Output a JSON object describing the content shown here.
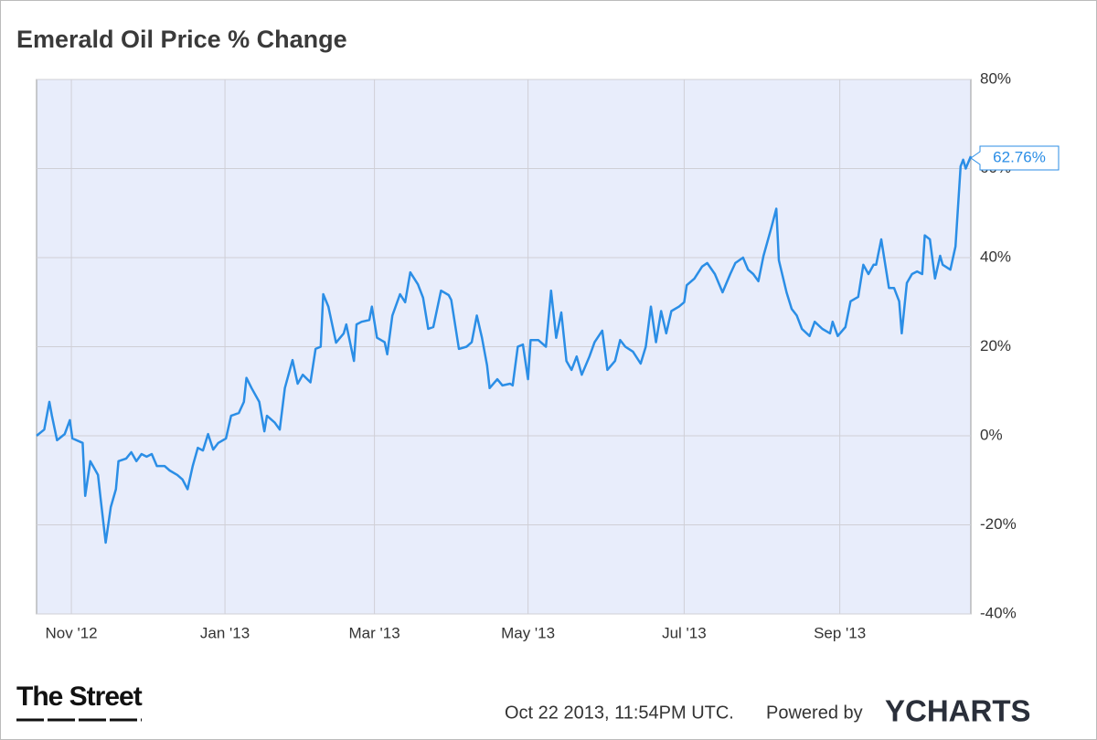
{
  "chart_data": {
    "type": "line",
    "title": "Emerald Oil Price % Change",
    "annotation": "62.76%",
    "grid": true,
    "xlim": [
      0,
      365
    ],
    "xticks": [
      {
        "value": 13.6,
        "label": "Nov '12"
      },
      {
        "value": 73.6,
        "label": "Jan '13"
      },
      {
        "value": 132,
        "label": "Mar '13"
      },
      {
        "value": 192,
        "label": "May '13"
      },
      {
        "value": 253,
        "label": "Jul '13"
      },
      {
        "value": 313.8,
        "label": "Sep '13"
      }
    ],
    "ylim": [
      -40,
      80
    ],
    "yticks": [
      {
        "value": -40,
        "label": "-40%"
      },
      {
        "value": -20,
        "label": "-20%"
      },
      {
        "value": 0,
        "label": "0%"
      },
      {
        "value": 20,
        "label": "20%"
      },
      {
        "value": 40,
        "label": "40%"
      },
      {
        "value": 60,
        "label": "60%"
      },
      {
        "value": 80,
        "label": "80%"
      }
    ],
    "series": [
      {
        "name": "Emerald Oil Price % Change",
        "color": "#2b8ee6",
        "x": [
          0,
          3,
          5,
          6,
          8,
          11,
          13,
          14,
          18,
          19,
          21,
          24,
          25,
          27,
          29,
          31,
          32,
          35,
          37,
          39,
          41,
          43,
          45,
          47,
          50,
          52,
          55,
          57,
          59,
          61,
          63,
          65,
          67,
          69,
          71,
          74,
          76,
          79,
          81,
          82,
          84,
          87,
          89,
          90,
          93,
          95,
          97,
          100,
          102,
          104,
          107,
          109,
          111,
          112,
          114,
          117,
          120,
          121,
          124,
          125,
          127,
          130,
          131,
          133,
          136,
          137,
          139,
          142,
          144,
          146,
          149,
          151,
          153,
          155,
          158,
          161,
          162,
          165,
          168,
          170,
          172,
          174,
          176,
          177,
          180,
          182,
          185,
          186,
          188,
          190,
          192,
          193,
          196,
          199,
          201,
          203,
          205,
          207,
          209,
          211,
          213,
          216,
          218,
          221,
          223,
          226,
          228,
          230,
          233,
          236,
          238,
          240,
          242,
          244,
          246,
          248,
          251,
          253,
          254,
          257,
          260,
          262,
          265,
          268,
          271,
          273,
          276,
          278,
          280,
          282,
          284,
          287,
          289,
          290,
          293,
          295,
          297,
          299,
          302,
          304,
          307,
          310,
          311,
          313,
          316,
          318,
          321,
          323,
          325,
          327,
          328,
          330,
          333,
          335,
          337,
          338,
          340,
          342,
          344,
          346,
          347,
          349,
          351,
          353,
          354,
          357,
          359,
          361,
          362,
          363,
          365
        ],
        "values": [
          0,
          1.4,
          7.6,
          4.5,
          -1,
          0.4,
          3.5,
          -0.6,
          -1.6,
          -13.5,
          -5.7,
          -8.8,
          -14,
          -24,
          -16,
          -12,
          -5.7,
          -5.1,
          -3.7,
          -5.7,
          -4.1,
          -4.7,
          -4.1,
          -6.8,
          -6.8,
          -7.8,
          -8.8,
          -9.8,
          -12,
          -6.8,
          -2.7,
          -3.3,
          0.4,
          -3.1,
          -1.6,
          -0.6,
          4.5,
          5.1,
          7.6,
          13,
          10.7,
          7.6,
          1,
          4.5,
          3,
          1.4,
          10.7,
          17,
          11.7,
          13.7,
          12,
          19.5,
          20,
          31.8,
          29,
          20.9,
          23,
          25,
          16.8,
          25,
          25.6,
          26,
          29,
          22,
          21,
          18.3,
          27,
          31.8,
          30,
          36.7,
          34,
          31,
          24,
          24.4,
          32.6,
          31.6,
          30.5,
          19.5,
          20,
          21,
          27,
          22,
          15.8,
          10.7,
          12.7,
          11.3,
          11.7,
          11.3,
          20,
          20.5,
          12.7,
          21.5,
          21.5,
          20,
          32.6,
          22,
          27.7,
          16.8,
          14.8,
          17.8,
          13.7,
          17.8,
          21,
          23.6,
          14.8,
          16.8,
          21.5,
          20,
          18.9,
          16.2,
          20,
          29,
          21,
          28,
          23,
          28,
          29,
          30,
          33.8,
          35.3,
          38,
          38.8,
          36.3,
          32.2,
          36.3,
          38.8,
          40,
          37.3,
          36.3,
          34.7,
          40.4,
          46.6,
          51,
          39.4,
          32.2,
          28.5,
          27,
          24,
          22.4,
          25.6,
          24,
          23,
          25.6,
          22.4,
          24.4,
          30.2,
          31.2,
          38.4,
          36.3,
          38.4,
          38.4,
          44.1,
          33.2,
          33.2,
          30.2,
          23,
          34.3,
          36.3,
          36.9,
          36.3,
          45,
          44.1,
          35.3,
          40.4,
          38.4,
          37.3,
          42.5,
          60.5,
          62,
          60,
          62.76
        ]
      }
    ]
  },
  "footer": {
    "logo": "The Street",
    "timestamp": "Oct 22 2013, 11:54PM UTC.",
    "powered_by": "Powered by",
    "brand": "YCHARTS"
  }
}
